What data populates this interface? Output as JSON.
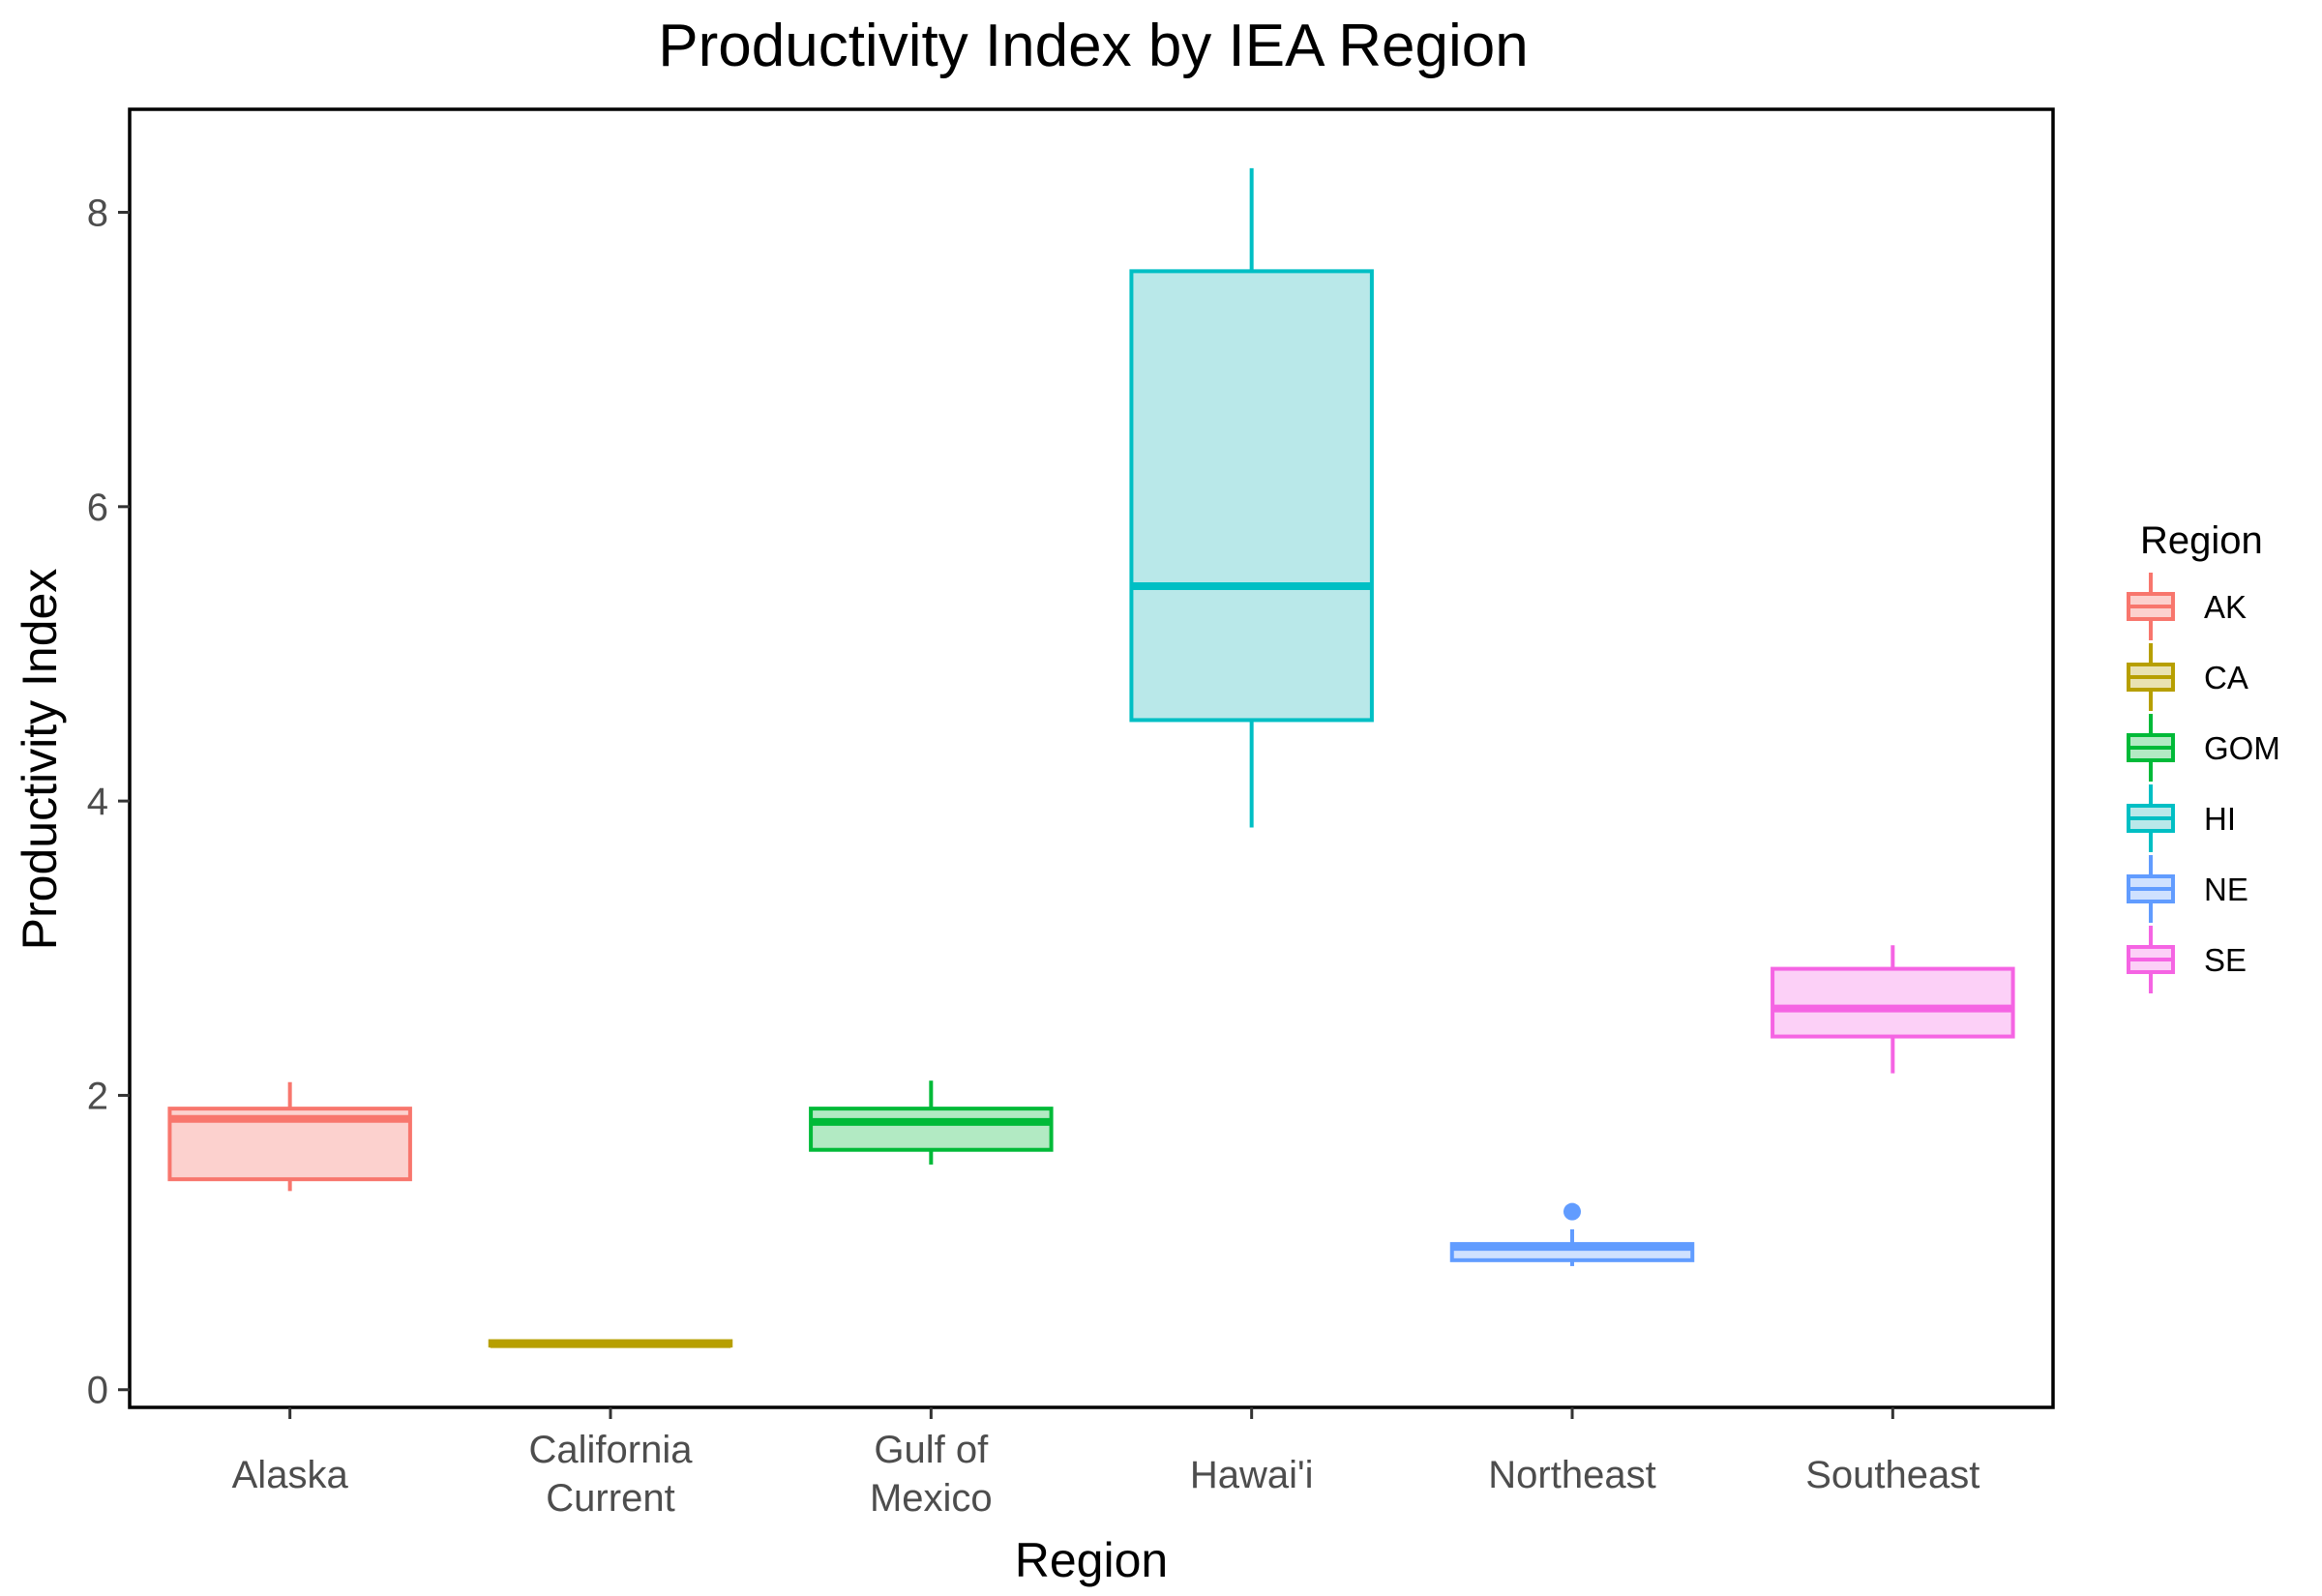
{
  "chart_data": {
    "type": "box",
    "title": "Productivity Index by IEA Region",
    "xlabel": "Region",
    "ylabel": "Productivity Index",
    "ylim": [
      -0.12,
      8.7
    ],
    "yticks": [
      0,
      2,
      4,
      6,
      8
    ],
    "grid": false,
    "legend": {
      "title": "Region",
      "position": "right"
    },
    "categories": [
      {
        "label": [
          "Alaska"
        ],
        "code": "AK",
        "color": "#F8766D",
        "fill": "#FCD1CE",
        "lower_whisker": 1.35,
        "q1": 1.43,
        "median": 1.84,
        "q3": 1.91,
        "upper_whisker": 2.09,
        "outliers": []
      },
      {
        "label": [
          "California",
          "Current"
        ],
        "code": "CA",
        "color": "#B79F00",
        "fill": "#E9E2B2",
        "lower_whisker": 0.29,
        "q1": 0.3,
        "median": 0.31,
        "q3": 0.33,
        "upper_whisker": 0.34,
        "outliers": []
      },
      {
        "label": [
          "Gulf of",
          "Mexico"
        ],
        "code": "GOM",
        "color": "#00BA38",
        "fill": "#B2EAC3",
        "lower_whisker": 1.53,
        "q1": 1.63,
        "median": 1.82,
        "q3": 1.91,
        "upper_whisker": 2.1,
        "outliers": []
      },
      {
        "label": [
          "Hawai'i"
        ],
        "code": "HI",
        "color": "#00BFC4",
        "fill": "#B9E8E9",
        "lower_whisker": 3.82,
        "q1": 4.55,
        "median": 5.46,
        "q3": 7.6,
        "upper_whisker": 8.3,
        "outliers": []
      },
      {
        "label": [
          "Northeast"
        ],
        "code": "NE",
        "color": "#619CFF",
        "fill": "#CFE1FF",
        "lower_whisker": 0.84,
        "q1": 0.88,
        "median": 0.97,
        "q3": 0.99,
        "upper_whisker": 1.09,
        "outliers": [
          1.21
        ]
      },
      {
        "label": [
          "Southeast"
        ],
        "code": "SE",
        "color": "#F564E3",
        "fill": "#FCD0F7",
        "lower_whisker": 2.15,
        "q1": 2.4,
        "median": 2.59,
        "q3": 2.86,
        "upper_whisker": 3.02,
        "outliers": []
      }
    ]
  }
}
